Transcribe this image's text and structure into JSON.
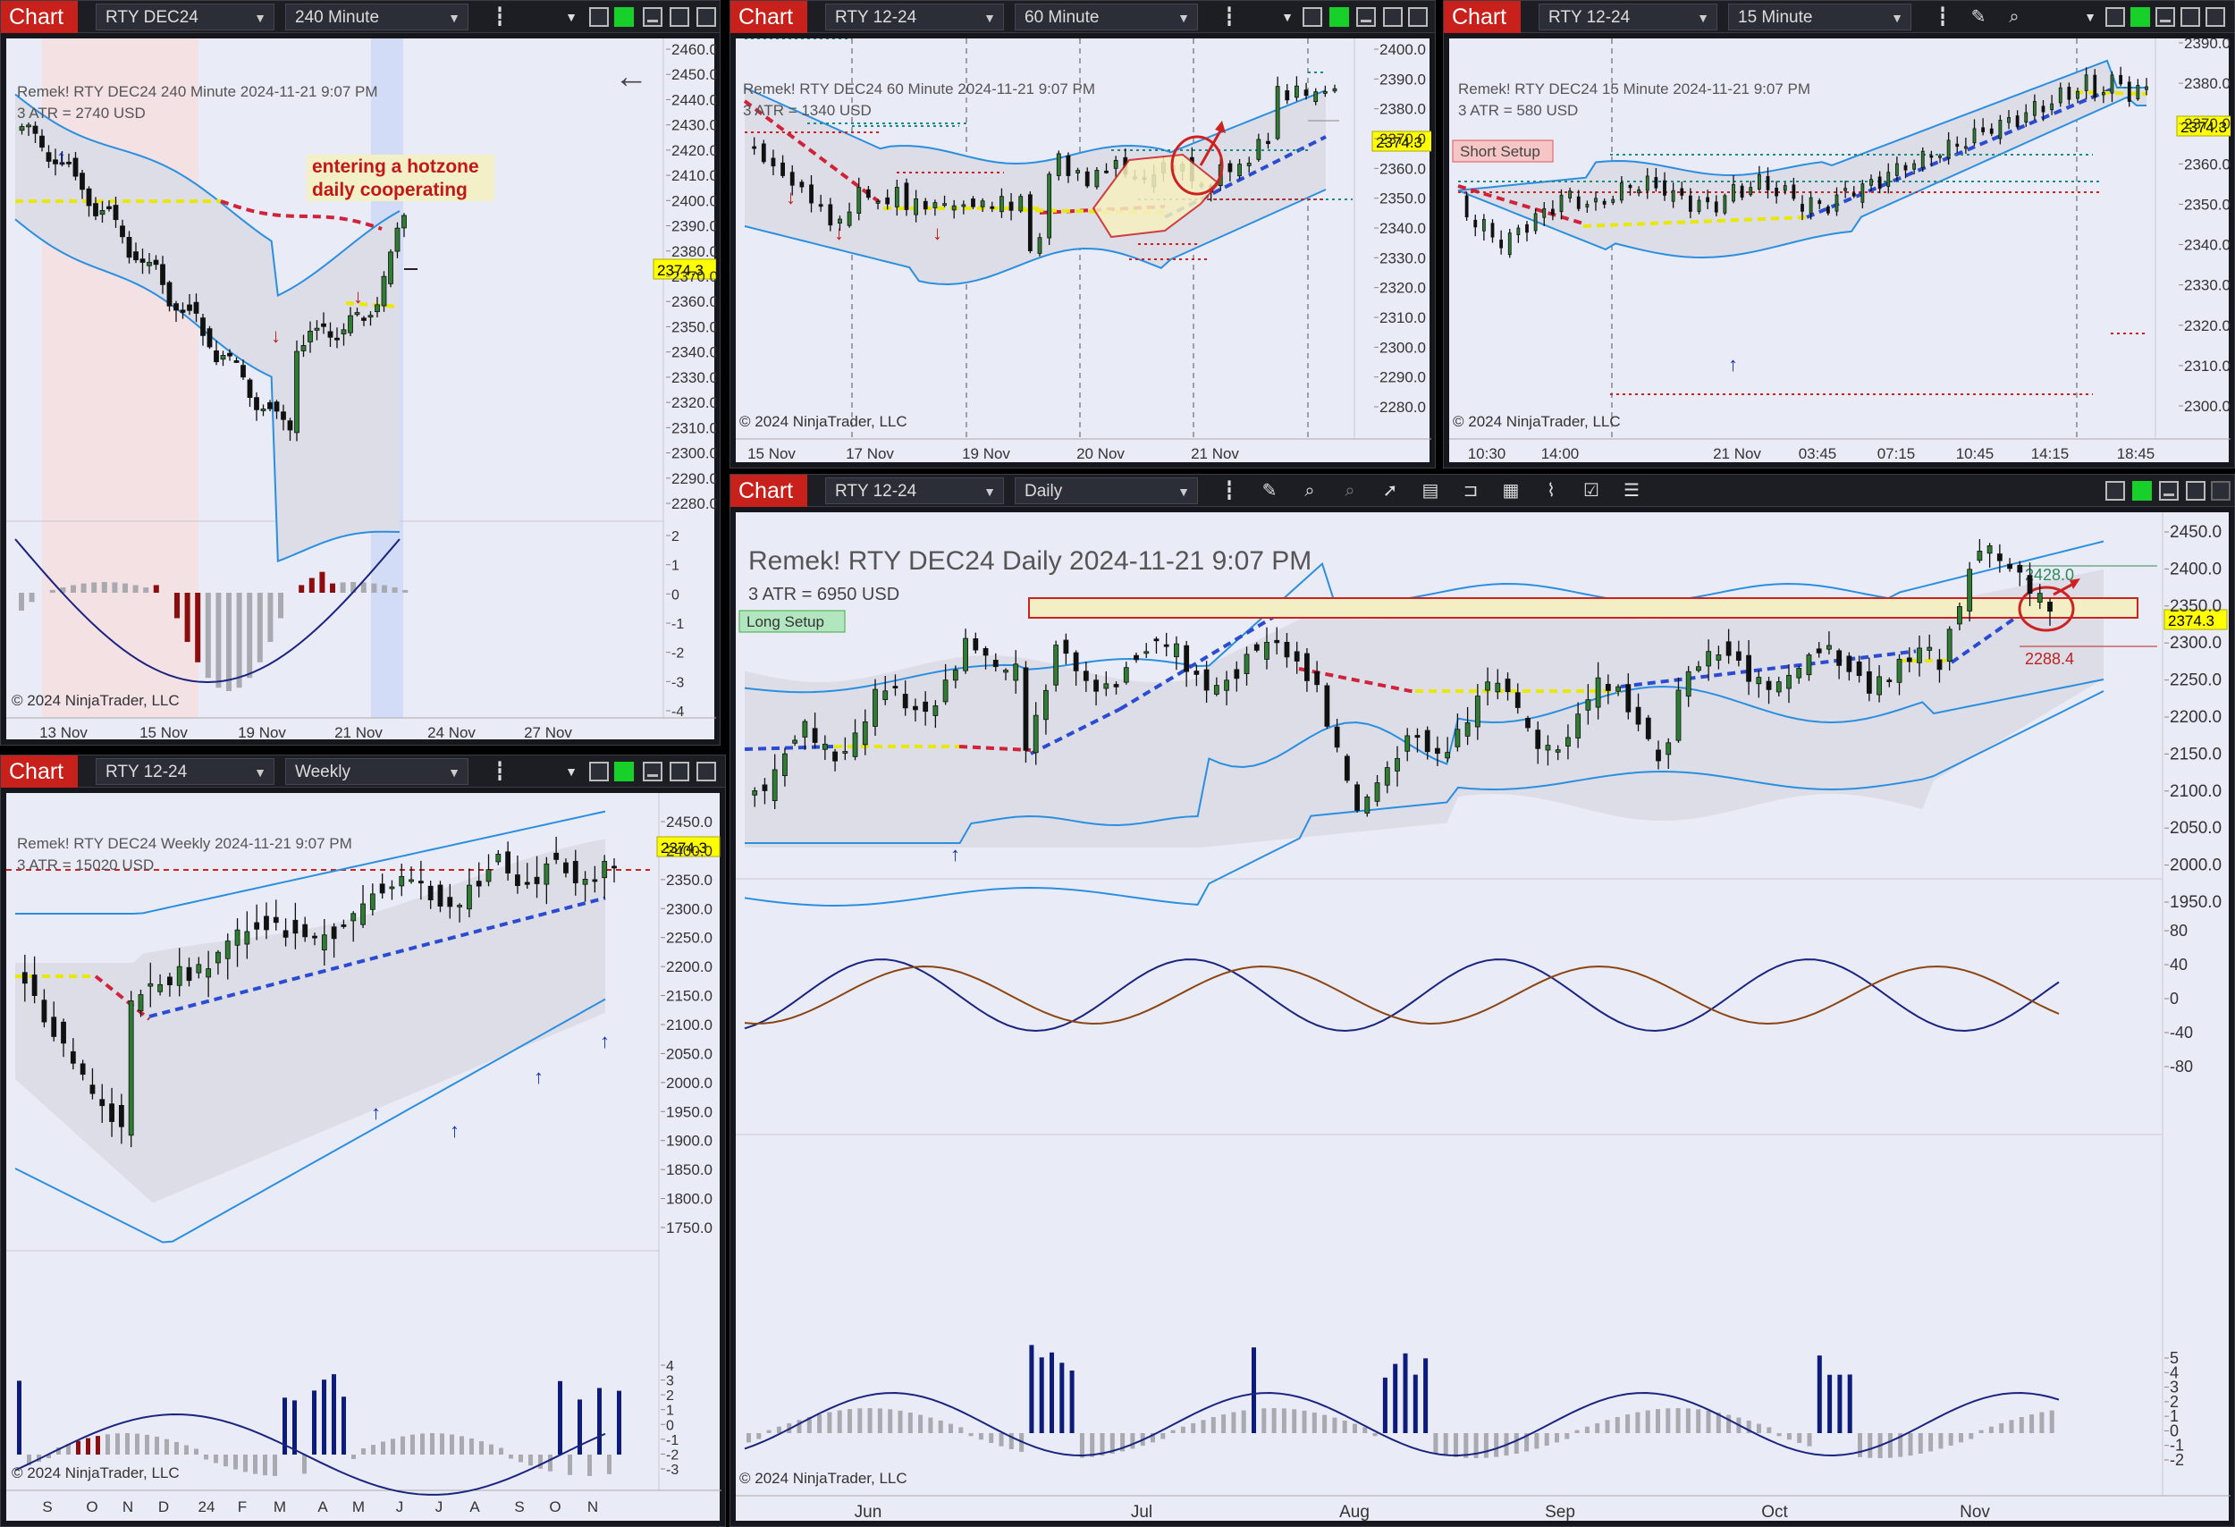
{
  "common": {
    "chart_btn": "Chart",
    "copyright": "© 2024 NinjaTrader, LLC",
    "indicator": "Remek!",
    "last_price": "2374.3"
  },
  "w240": {
    "instrument": "RTY DEC24",
    "interval": "240 Minute",
    "title": "Remek!  RTY DEC24  240 Minute  2024-11-21 9:07 PM",
    "atr": "3 ATR = 2740 USD",
    "note1": "entering a hotzone",
    "note2": "daily cooperating",
    "yticks": [
      "2460.0",
      "2450.0",
      "2440.0",
      "2430.0",
      "2420.0",
      "2410.0",
      "2400.0",
      "2390.0",
      "2380.0",
      "2370.0",
      "2360.0",
      "2350.0",
      "2340.0",
      "2330.0",
      "2320.0",
      "2310.0",
      "2300.0",
      "2290.0",
      "2280.0"
    ],
    "osc_ticks": [
      "2",
      "1",
      "0",
      "-1",
      "-2",
      "-3",
      "-4"
    ],
    "xticks": [
      "13 Nov",
      "15 Nov",
      "19 Nov",
      "21 Nov",
      "24 Nov",
      "27 Nov"
    ]
  },
  "w60": {
    "instrument": "RTY 12-24",
    "interval": "60 Minute",
    "title": "Remek!  RTY DEC24  60 Minute  2024-11-21 9:07 PM",
    "atr": "3 ATR = 1340 USD",
    "yticks": [
      "2400.0",
      "2390.0",
      "2380.0",
      "2370.0",
      "2360.0",
      "2350.0",
      "2340.0",
      "2330.0",
      "2320.0",
      "2310.0",
      "2300.0",
      "2290.0",
      "2280.0"
    ],
    "xticks": [
      "15 Nov",
      "17 Nov",
      "19 Nov",
      "20 Nov",
      "21 Nov"
    ]
  },
  "w15": {
    "instrument": "RTY 12-24",
    "interval": "15 Minute",
    "title": "Remek!  RTY DEC24  15 Minute  2024-11-21 9:07 PM",
    "atr": "3 ATR = 580 USD",
    "setup": "Short Setup",
    "yticks": [
      "2390.0",
      "2380.0",
      "2370.0",
      "2360.0",
      "2350.0",
      "2340.0",
      "2330.0",
      "2320.0",
      "2310.0",
      "2300.0"
    ],
    "xticks": [
      "10:30",
      "14:00",
      "21 Nov",
      "03:45",
      "07:15",
      "10:45",
      "14:15",
      "18:45"
    ]
  },
  "wW": {
    "instrument": "RTY 12-24",
    "interval": "Weekly",
    "title": "Remek!  RTY DEC24  Weekly  2024-11-21 9:07 PM",
    "atr": "3 ATR = 15020 USD",
    "yticks": [
      "2450.0",
      "2400.0",
      "2350.0",
      "2300.0",
      "2250.0",
      "2200.0",
      "2150.0",
      "2100.0",
      "2050.0",
      "2000.0",
      "1950.0",
      "1900.0",
      "1850.0",
      "1800.0",
      "1750.0"
    ],
    "osc_ticks": [
      "4",
      "3",
      "2",
      "1",
      "0",
      "-1",
      "-2",
      "-3"
    ],
    "xticks": [
      "S",
      "O",
      "N",
      "D",
      "24",
      "F",
      "M",
      "A",
      "M",
      "J",
      "J",
      "A",
      "S",
      "O",
      "N"
    ]
  },
  "wD": {
    "instrument": "RTY 12-24",
    "interval": "Daily",
    "title": "Remek!  RTY DEC24  Daily  2024-11-21 9:07 PM",
    "atr": "3 ATR = 6950 USD",
    "setup": "Long Setup",
    "target": "2428.0",
    "stop": "2288.4",
    "yticks": [
      "2450.0",
      "2400.0",
      "2350.0",
      "2300.0",
      "2250.0",
      "2200.0",
      "2150.0",
      "2100.0",
      "2050.0",
      "2000.0",
      "1950.0"
    ],
    "osc1_ticks": [
      "80",
      "40",
      "0",
      "-40",
      "-80"
    ],
    "osc2_ticks": [
      "5",
      "4",
      "3",
      "2",
      "1",
      "0",
      "-1",
      "-2"
    ],
    "xticks": [
      "Jun",
      "Jul",
      "Aug",
      "Sep",
      "Oct",
      "Nov"
    ]
  }
}
